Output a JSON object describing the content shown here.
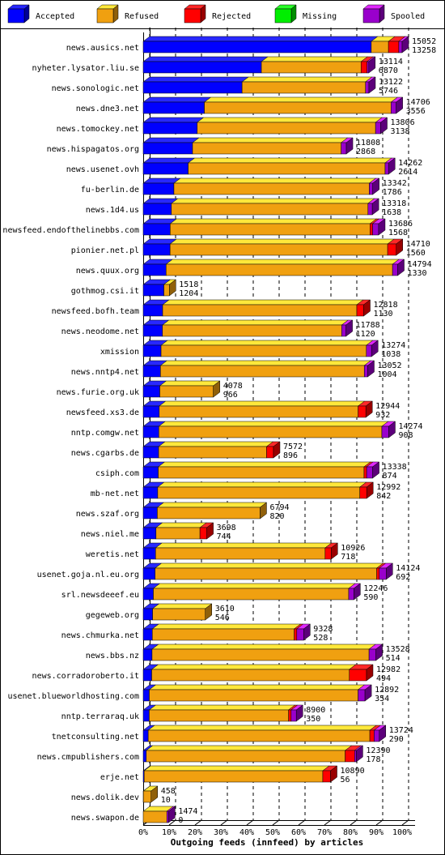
{
  "chart_data": {
    "type": "bar3d-stacked-horizontal",
    "title": "Outgoing feeds (innfeed) by articles",
    "categories": [
      "news.ausics.net",
      "nyheter.lysator.liu.se",
      "news.sonologic.net",
      "news.dne3.net",
      "news.tomockey.net",
      "news.hispagatos.org",
      "news.usenet.ovh",
      "fu-berlin.de",
      "news.1d4.us",
      "newsfeed.endofthelinebbs.com",
      "pionier.net.pl",
      "news.quux.org",
      "gothmog.csi.it",
      "newsfeed.bofh.team",
      "news.neodome.net",
      "xmission",
      "news.nntp4.net",
      "news.furie.org.uk",
      "newsfeed.xs3.de",
      "nntp.comgw.net",
      "news.cgarbs.de",
      "csiph.com",
      "mb-net.net",
      "news.szaf.org",
      "news.niel.me",
      "weretis.net",
      "usenet.goja.nl.eu.org",
      "srl.newsdeeef.eu",
      "gegeweb.org",
      "news.chmurka.net",
      "news.bbs.nz",
      "news.corradoroberto.it",
      "usenet.blueworldhosting.com",
      "nntp.terraraq.uk",
      "tnetconsulting.net",
      "news.cmpublishers.com",
      "erje.net",
      "news.dolik.dev",
      "news.swapon.de"
    ],
    "totals": [
      15052,
      13114,
      13122,
      14706,
      13806,
      11808,
      14262,
      13342,
      13318,
      13686,
      14710,
      14794,
      1518,
      12818,
      11788,
      13274,
      13052,
      4078,
      12944,
      14274,
      7572,
      13338,
      12992,
      6794,
      3698,
      10926,
      14124,
      12246,
      3610,
      9328,
      13528,
      12982,
      12892,
      8900,
      13724,
      12390,
      10890,
      458,
      1474
    ],
    "series": [
      {
        "name": "Accepted",
        "color": "#0000ff",
        "values": [
          13258,
          6870,
          5746,
          3556,
          3138,
          2868,
          2614,
          1786,
          1638,
          1568,
          1560,
          1330,
          1204,
          1130,
          1120,
          1038,
          1004,
          966,
          932,
          908,
          896,
          874,
          842,
          820,
          744,
          718,
          692,
          590,
          546,
          528,
          514,
          494,
          354,
          350,
          290,
          178,
          56,
          10,
          0
        ]
      },
      {
        "name": "Refused",
        "color": "#f0a010",
        "values": [
          1000,
          5794,
          7176,
          10850,
          10368,
          8640,
          11448,
          11356,
          11430,
          11618,
          12650,
          13164,
          314,
          11288,
          10418,
          11936,
          11848,
          3112,
          11562,
          12966,
          6276,
          11964,
          11750,
          5974,
          2554,
          9858,
          12882,
          11356,
          3064,
          8250,
          12614,
          11488,
          12138,
          8100,
          12884,
          11562,
          10384,
          448,
          1374
        ]
      },
      {
        "name": "Rejected",
        "color": "#ff0000",
        "values": [
          600,
          350,
          0,
          0,
          0,
          0,
          0,
          0,
          0,
          150,
          500,
          0,
          0,
          400,
          0,
          0,
          0,
          0,
          450,
          0,
          400,
          150,
          400,
          0,
          400,
          350,
          150,
          0,
          0,
          150,
          0,
          1000,
          0,
          150,
          250,
          550,
          450,
          0,
          0
        ]
      },
      {
        "name": "Missing",
        "color": "#00ee00",
        "values": [
          0,
          0,
          0,
          0,
          0,
          0,
          0,
          0,
          0,
          0,
          0,
          0,
          0,
          0,
          0,
          0,
          0,
          0,
          0,
          0,
          0,
          0,
          0,
          0,
          0,
          0,
          0,
          0,
          0,
          0,
          0,
          0,
          0,
          0,
          0,
          0,
          0,
          0,
          0
        ]
      },
      {
        "name": "Spooled",
        "color": "#9900cc",
        "values": [
          194,
          100,
          200,
          300,
          300,
          300,
          200,
          200,
          250,
          350,
          0,
          300,
          0,
          0,
          250,
          300,
          200,
          0,
          0,
          400,
          0,
          350,
          0,
          0,
          0,
          0,
          400,
          300,
          0,
          400,
          400,
          0,
          400,
          300,
          300,
          100,
          0,
          0,
          100
        ]
      }
    ],
    "xlim": [
      0,
      15052
    ],
    "xticks": [
      {
        "value": 0,
        "label": "0%"
      },
      {
        "value": 1505.2,
        "label": "10%"
      },
      {
        "value": 3010.4,
        "label": "20%"
      },
      {
        "value": 4515.6,
        "label": "30%"
      },
      {
        "value": 6020.8,
        "label": "40%"
      },
      {
        "value": 7526,
        "label": "50%"
      },
      {
        "value": 9031.2,
        "label": "60%"
      },
      {
        "value": 10536.4,
        "label": "70%"
      },
      {
        "value": 12041.6,
        "label": "80%"
      },
      {
        "value": 13546.8,
        "label": "90%"
      },
      {
        "value": 15052,
        "label": "100%"
      }
    ],
    "grid": true
  }
}
